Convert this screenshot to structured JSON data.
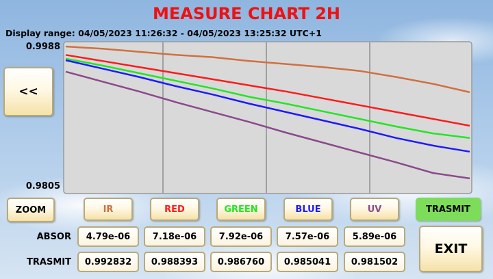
{
  "header": {
    "title": "MEASURE CHART 2H",
    "subtitle": "Display range: 04/05/2023 11:26:32 - 04/05/2023 13:25:32 UTC+1"
  },
  "chart_data": {
    "type": "line",
    "categories": [
      null,
      null,
      null,
      null,
      null,
      null,
      null,
      null,
      null,
      null,
      null,
      null
    ],
    "series": [
      {
        "name": "IR",
        "color": "#d0703f",
        "values": [
          0.9988,
          0.9985,
          0.9981,
          0.9977,
          0.9974,
          0.9969,
          0.9965,
          0.9961,
          0.9956,
          0.9948,
          0.9939,
          0.9928
        ]
      },
      {
        "name": "RED",
        "color": "#ff1a1a",
        "values": [
          0.9977,
          0.9969,
          0.9961,
          0.9953,
          0.9945,
          0.9937,
          0.9929,
          0.992,
          0.9911,
          0.9902,
          0.9893,
          0.9884
        ]
      },
      {
        "name": "GREEN",
        "color": "#22e622",
        "values": [
          0.9972,
          0.9963,
          0.9953,
          0.9943,
          0.9933,
          0.9922,
          0.9913,
          0.9903,
          0.9893,
          0.9883,
          0.9874,
          0.9868
        ]
      },
      {
        "name": "BLUE",
        "color": "#1a1aff",
        "values": [
          0.997,
          0.9959,
          0.9948,
          0.9936,
          0.9925,
          0.9913,
          0.9902,
          0.9891,
          0.988,
          0.9868,
          0.9858,
          0.985
        ]
      },
      {
        "name": "UV",
        "color": "#8a4a8a",
        "values": [
          0.9955,
          0.9942,
          0.9929,
          0.9915,
          0.9902,
          0.9889,
          0.9875,
          0.9862,
          0.9849,
          0.9836,
          0.9822,
          0.9815
        ]
      }
    ],
    "ylim": [
      0.9805,
      0.9988
    ],
    "yticks": [
      0.9988,
      0.9805
    ],
    "grid": true
  },
  "buttons": {
    "back": "<<",
    "zoom": "ZOOM",
    "trasmit": "TRASMIT",
    "exit": "EXIT"
  },
  "table": {
    "rows": [
      {
        "label": "ABSOR",
        "cells": [
          "4.79e-06",
          "7.18e-06",
          "7.92e-06",
          "7.57e-06",
          "5.89e-06"
        ]
      },
      {
        "label": "TRASMIT",
        "cells": [
          "0.992832",
          "0.988393",
          "0.986760",
          "0.985041",
          "0.981502"
        ]
      }
    ]
  }
}
